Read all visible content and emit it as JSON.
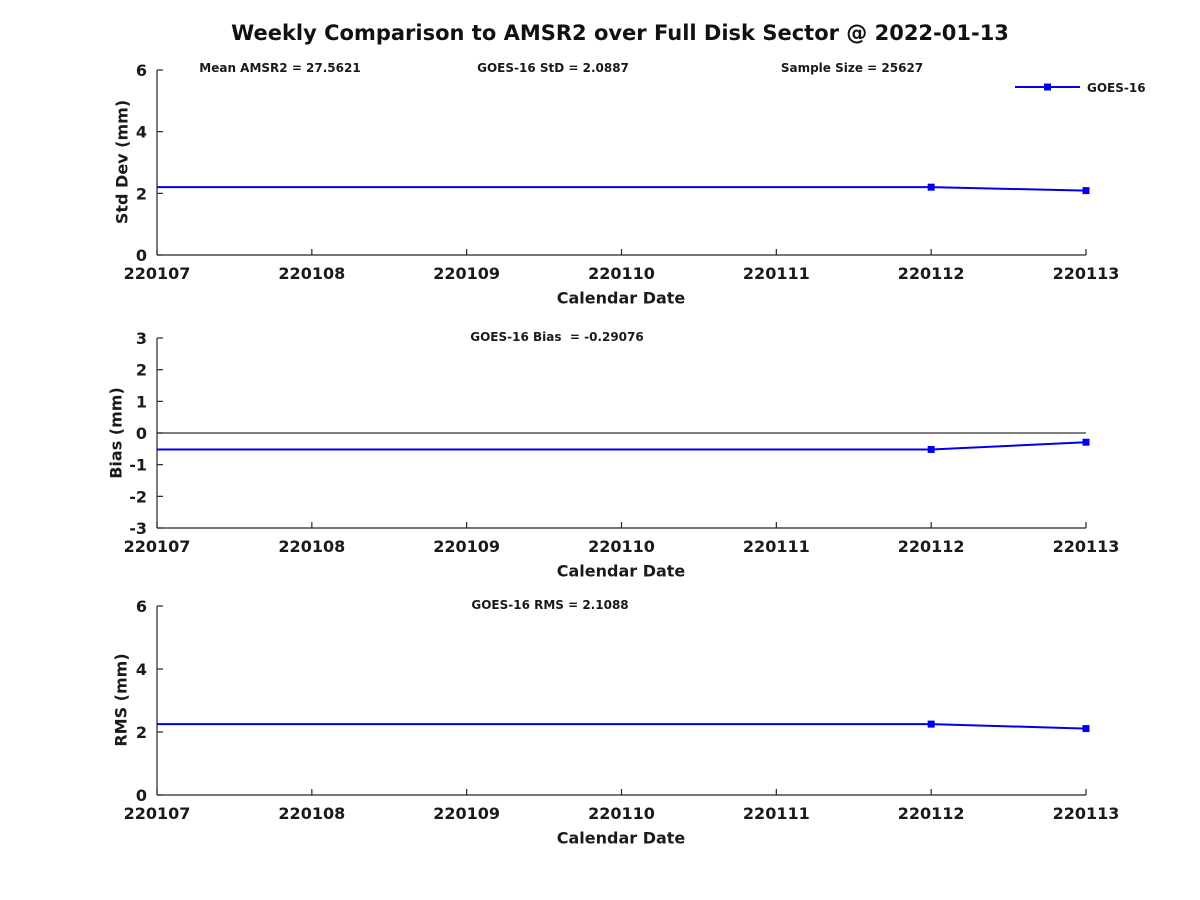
{
  "title": "Weekly Comparison to AMSR2 over Full Disk Sector @ 2022-01-13",
  "legend": {
    "label": "GOES-16",
    "position": "top-right-of-first-plot"
  },
  "colors": {
    "series": "#0000ee",
    "axis": "#262626",
    "text": "#1a1a1a",
    "zero_line": "#000000",
    "background": "#ffffff"
  },
  "chart_data": [
    {
      "type": "line",
      "name": "std-dev-panel",
      "xlabel": "Calendar Date",
      "ylabel": "Std Dev (mm)",
      "x_tick_labels": [
        "220107",
        "220108",
        "220109",
        "220110",
        "220111",
        "220112",
        "220113"
      ],
      "ylim": [
        0,
        6
      ],
      "yticks": [
        0,
        2,
        4,
        6
      ],
      "grid": false,
      "zero_line": false,
      "series": [
        {
          "name": "GOES-16",
          "values": [
            2.2,
            2.2,
            2.2,
            2.2,
            2.2,
            2.2,
            2.0887
          ],
          "marker": "filled-square",
          "marker_indices": [
            5,
            6
          ]
        }
      ],
      "annotations": [
        {
          "text": "Mean AMSR2 = 27.5621"
        },
        {
          "text": "GOES-16 StD = 2.0887"
        },
        {
          "text": "Sample Size = 25627"
        }
      ]
    },
    {
      "type": "line",
      "name": "bias-panel",
      "xlabel": "Calendar Date",
      "ylabel": "Bias (mm)",
      "x_tick_labels": [
        "220107",
        "220108",
        "220109",
        "220110",
        "220111",
        "220112",
        "220113"
      ],
      "ylim": [
        -3,
        3
      ],
      "yticks": [
        -3,
        -2,
        -1,
        0,
        1,
        2,
        3
      ],
      "grid": false,
      "zero_line": true,
      "series": [
        {
          "name": "GOES-16",
          "values": [
            -0.52,
            -0.52,
            -0.52,
            -0.52,
            -0.52,
            -0.52,
            -0.29076
          ],
          "marker": "filled-square",
          "marker_indices": [
            5,
            6
          ]
        }
      ],
      "annotations": [
        {
          "text": "GOES-16 Bias  = -0.29076"
        }
      ]
    },
    {
      "type": "line",
      "name": "rms-panel",
      "xlabel": "Calendar Date",
      "ylabel": "RMS (mm)",
      "x_tick_labels": [
        "220107",
        "220108",
        "220109",
        "220110",
        "220111",
        "220112",
        "220113"
      ],
      "ylim": [
        0,
        6
      ],
      "yticks": [
        0,
        2,
        4,
        6
      ],
      "grid": false,
      "zero_line": false,
      "series": [
        {
          "name": "GOES-16",
          "values": [
            2.25,
            2.25,
            2.25,
            2.25,
            2.25,
            2.25,
            2.1088
          ],
          "marker": "filled-square",
          "marker_indices": [
            5,
            6
          ]
        }
      ],
      "annotations": [
        {
          "text": "GOES-16 RMS = 2.1088"
        }
      ]
    }
  ]
}
